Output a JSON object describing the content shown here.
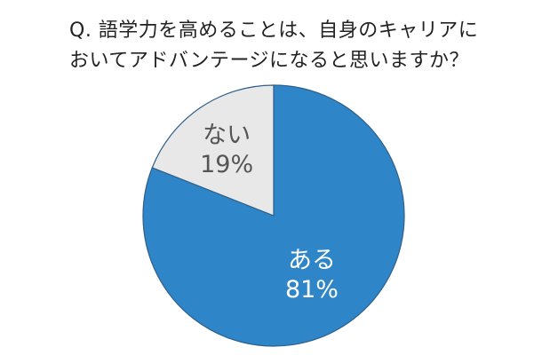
{
  "question": {
    "line1": "Q. 語学力を高めることは、自身のキャリアに",
    "line2": "おいてアドバンテージになると思いますか？"
  },
  "chart_data": {
    "type": "pie",
    "slices": [
      {
        "label": "ある",
        "value": 81,
        "value_label": "81%",
        "color": "#2e86c8",
        "text_color": "#ffffff"
      },
      {
        "label": "ない",
        "value": 19,
        "value_label": "19%",
        "color": "#e8e8e8",
        "text_color": "#555555"
      }
    ],
    "start": "12 o'clock",
    "direction": "clockwise",
    "outline_color": "#2f5f8a"
  }
}
